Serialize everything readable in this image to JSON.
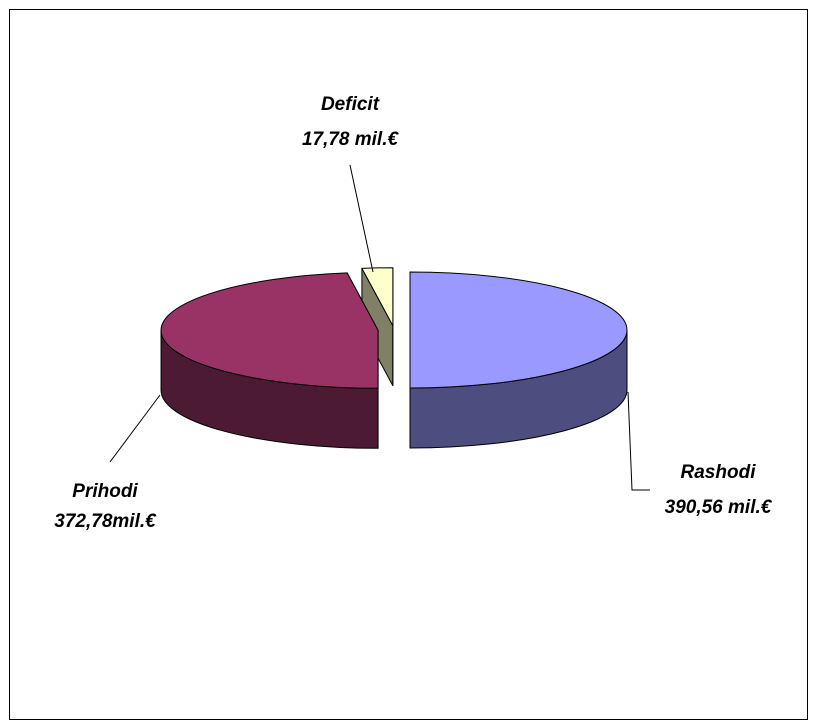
{
  "chart_data": {
    "type": "pie",
    "categories": [
      "Rashodi",
      "Prihodi",
      "Deficit"
    ],
    "values": [
      390.56,
      372.78,
      17.78
    ],
    "value_labels": [
      "390,56 mil.€",
      "372,78mil.€",
      "17,78 mil.€"
    ],
    "colors": [
      "#9999ff",
      "#993366",
      "#ffffcc"
    ]
  }
}
